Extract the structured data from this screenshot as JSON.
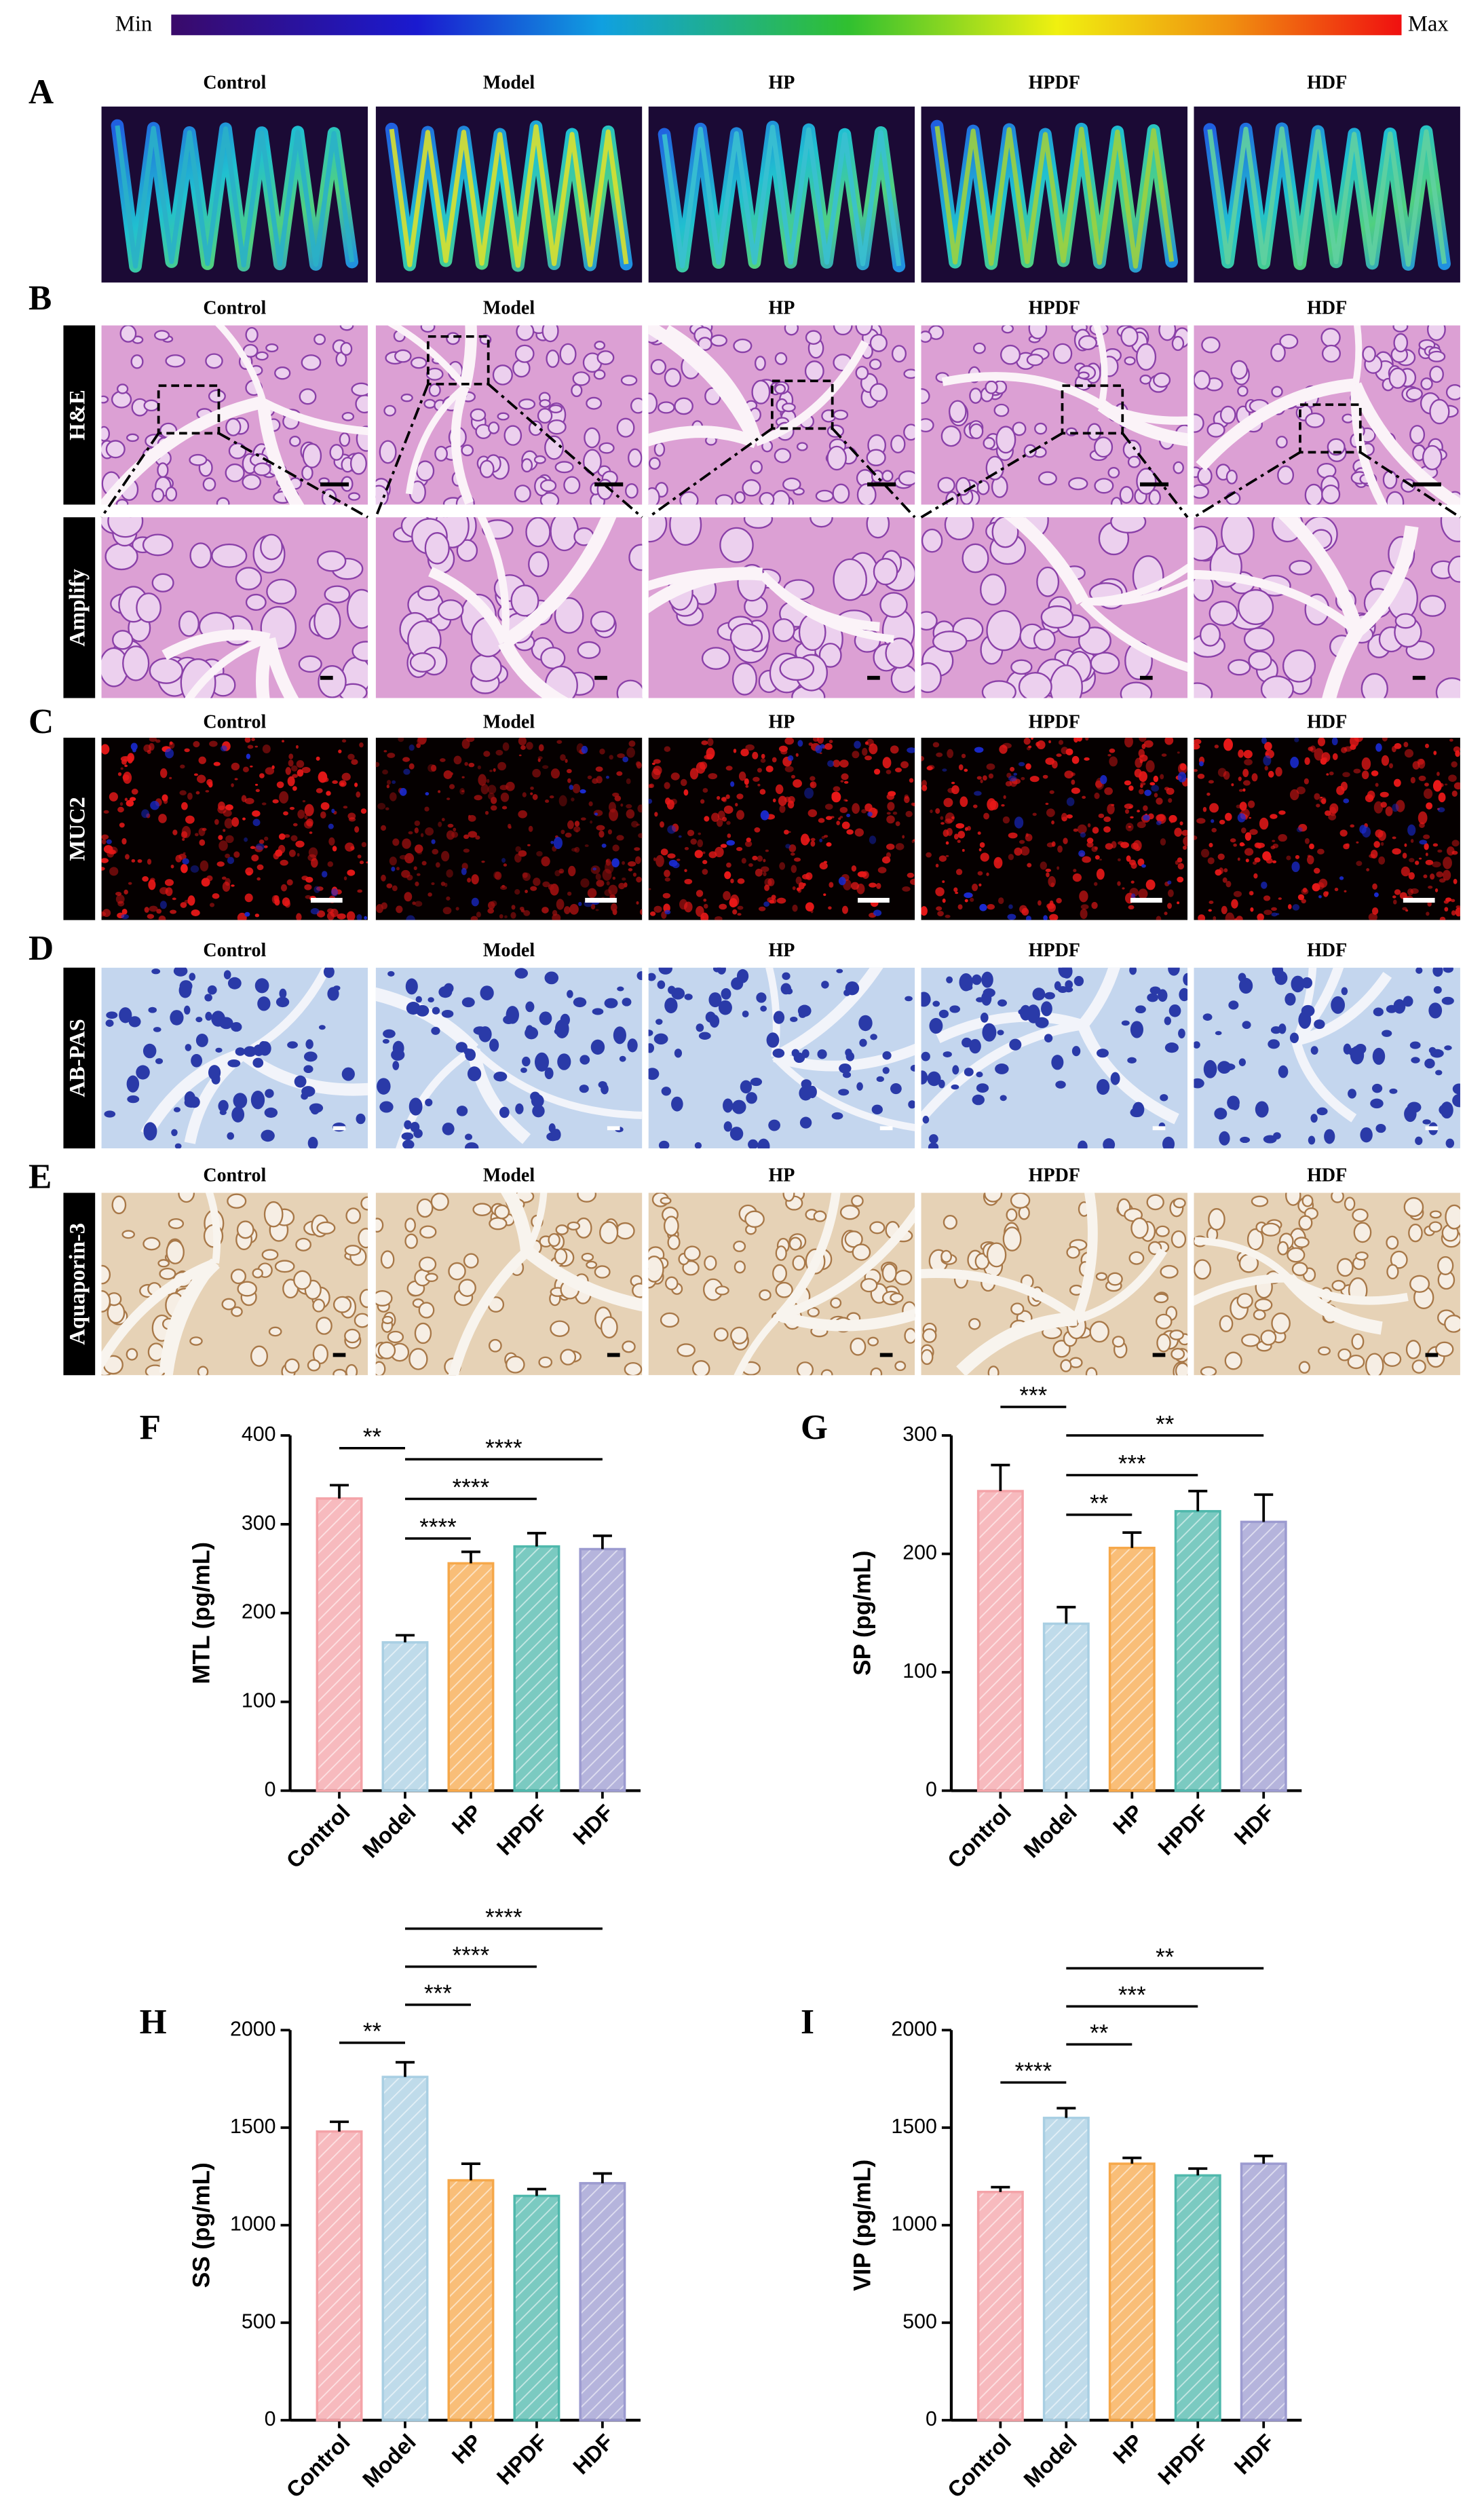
{
  "figure": {
    "colorbar": {
      "min": "Min",
      "max": "Max"
    },
    "panels": [
      {
        "letter": "A",
        "columns": [
          "Control",
          "Model",
          "HP",
          "HPDF",
          "HDF"
        ]
      },
      {
        "letter": "B",
        "columns": [
          "Control",
          "Model",
          "HP",
          "HPDF",
          "HDF"
        ],
        "rows": [
          "H&E",
          "Amplify"
        ]
      },
      {
        "letter": "C",
        "columns": [
          "Control",
          "Model",
          "HP",
          "HPDF",
          "HDF"
        ],
        "rows": [
          "MUC2"
        ]
      },
      {
        "letter": "D",
        "columns": [
          "Control",
          "Model",
          "HP",
          "HPDF",
          "HDF"
        ],
        "rows": [
          "AB-PAS"
        ]
      },
      {
        "letter": "E",
        "columns": [
          "Control",
          "Model",
          "HP",
          "HPDF",
          "HDF"
        ],
        "rows": [
          "Aquaporin-3"
        ]
      }
    ]
  },
  "chart_data": [
    {
      "type": "bar",
      "label": "F",
      "y_label": "MTL (pg/mL)",
      "categories": [
        "Control",
        "Model",
        "HP",
        "HPDF",
        "HDF"
      ],
      "values": [
        329,
        167,
        256,
        275,
        272
      ],
      "errors": [
        15,
        8,
        13,
        15,
        15
      ],
      "colors": [
        "#f4a3a8",
        "#a9cfe3",
        "#f6a84a",
        "#4fb8ac",
        "#9c9bd0"
      ],
      "ylim": [
        0,
        400
      ],
      "yticks": [
        0,
        100,
        200,
        300,
        400
      ],
      "significance": [
        {
          "from": "Control",
          "to": "Model",
          "label": "**"
        },
        {
          "from": "Model",
          "to": "HDF",
          "label": "****"
        },
        {
          "from": "Model",
          "to": "HPDF",
          "label": "****"
        },
        {
          "from": "Model",
          "to": "HP",
          "label": "****"
        }
      ]
    },
    {
      "type": "bar",
      "label": "G",
      "y_label": "SP (pg/mL)",
      "categories": [
        "Control",
        "Model",
        "HP",
        "HPDF",
        "HDF"
      ],
      "values": [
        253,
        141,
        205,
        236,
        227
      ],
      "errors": [
        22,
        14,
        13,
        17,
        23
      ],
      "colors": [
        "#f4a3a8",
        "#a9cfe3",
        "#f6a84a",
        "#4fb8ac",
        "#9c9bd0"
      ],
      "ylim": [
        0,
        300
      ],
      "yticks": [
        0,
        100,
        200,
        300
      ],
      "significance": [
        {
          "from": "Control",
          "to": "Model",
          "label": "***"
        },
        {
          "from": "Model",
          "to": "HDF",
          "label": "**"
        },
        {
          "from": "Model",
          "to": "HPDF",
          "label": "***"
        },
        {
          "from": "Model",
          "to": "HP",
          "label": "**"
        }
      ]
    },
    {
      "type": "bar",
      "label": "H",
      "y_label": "SS (pg/mL)",
      "categories": [
        "Control",
        "Model",
        "HP",
        "HPDF",
        "HDF"
      ],
      "values": [
        1480,
        1760,
        1230,
        1150,
        1215
      ],
      "errors": [
        50,
        75,
        85,
        35,
        50
      ],
      "colors": [
        "#f4a3a8",
        "#a9cfe3",
        "#f6a84a",
        "#4fb8ac",
        "#9c9bd0"
      ],
      "ylim": [
        0,
        2000
      ],
      "yticks": [
        0,
        500,
        1000,
        1500,
        2000
      ],
      "significance": [
        {
          "from": "Control",
          "to": "Model",
          "label": "**"
        },
        {
          "from": "Model",
          "to": "HP",
          "label": "***"
        },
        {
          "from": "Model",
          "to": "HPDF",
          "label": "****"
        },
        {
          "from": "Model",
          "to": "HDF",
          "label": "****"
        }
      ]
    },
    {
      "type": "bar",
      "label": "I",
      "y_label": "VIP (pg/mL)",
      "categories": [
        "Control",
        "Model",
        "HP",
        "HPDF",
        "HDF"
      ],
      "values": [
        1170,
        1550,
        1315,
        1255,
        1315
      ],
      "errors": [
        25,
        50,
        30,
        35,
        40
      ],
      "colors": [
        "#f4a3a8",
        "#a9cfe3",
        "#f6a84a",
        "#4fb8ac",
        "#9c9bd0"
      ],
      "ylim": [
        0,
        2000
      ],
      "yticks": [
        0,
        500,
        1000,
        1500,
        2000
      ],
      "significance": [
        {
          "from": "Control",
          "to": "Model",
          "label": "****"
        },
        {
          "from": "Model",
          "to": "HP",
          "label": "**"
        },
        {
          "from": "Model",
          "to": "HPDF",
          "label": "***"
        },
        {
          "from": "Model",
          "to": "HDF",
          "label": "**"
        }
      ]
    }
  ]
}
